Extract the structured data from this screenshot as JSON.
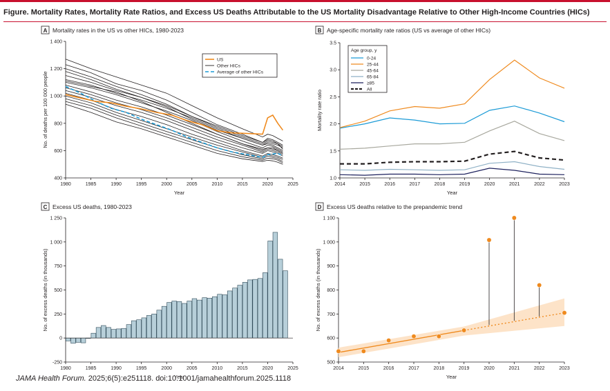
{
  "figure": {
    "title": "Figure. Mortality Rates, Mortality Rate Ratios, and Excess US Deaths Attributable to the US Mortality Disadvantage Relative to Other High-Income Countries (HICs)",
    "citation_journal": "JAMA Health Forum.",
    "citation_rest": " 2025;6(5):e251118. doi:10.1001/jamahealthforum.2025.1118"
  },
  "colors": {
    "us": "#ef8a1e",
    "other_hics": "#231f20",
    "average": "#1a9ad6",
    "bars": "#b7cfd9",
    "accent_red": "#c8102e",
    "band": "#fde0c2"
  },
  "chart_data": [
    {
      "panel_letter": "A",
      "title": "Mortality rates in the US vs other HICs, 1980-2023",
      "type": "line",
      "xlabel": "Year",
      "ylabel": "No. of deaths per 100 000 people",
      "xlim": [
        1980,
        2025
      ],
      "ylim": [
        400,
        1400
      ],
      "xticks": [
        1980,
        1985,
        1990,
        1995,
        2000,
        2005,
        2010,
        2015,
        2020,
        2025
      ],
      "yticks": [
        400,
        600,
        800,
        1000,
        1200,
        1400
      ],
      "legend": [
        "US",
        "Other HICs",
        "Average of other HICs"
      ],
      "legend_position": "top-right",
      "us": {
        "name": "US",
        "x": [
          1980,
          1983,
          1986,
          1989,
          1992,
          1995,
          1998,
          2001,
          2004,
          2007,
          2010,
          2013,
          2016,
          2019,
          2020,
          2021,
          2022,
          2023
        ],
        "y": [
          1010,
          985,
          960,
          950,
          925,
          905,
          880,
          860,
          820,
          790,
          745,
          730,
          725,
          720,
          840,
          860,
          800,
          750
        ]
      },
      "average": {
        "name": "Average of other HICs",
        "x": [
          1980,
          1983,
          1986,
          1989,
          1992,
          1995,
          1998,
          2001,
          2004,
          2007,
          2010,
          2013,
          2016,
          2019,
          2020,
          2021,
          2022,
          2023
        ],
        "y": [
          1070,
          1020,
          960,
          910,
          880,
          830,
          790,
          750,
          700,
          660,
          620,
          590,
          570,
          550,
          570,
          575,
          580,
          560
        ]
      },
      "others": [
        {
          "x": [
            1980,
            1985,
            1990,
            1995,
            2000,
            2005,
            2010,
            2015,
            2019,
            2020,
            2021,
            2022,
            2023
          ],
          "y": [
            1270,
            1200,
            1140,
            1080,
            1020,
            930,
            840,
            760,
            700,
            720,
            710,
            690,
            670
          ]
        },
        {
          "x": [
            1980,
            1985,
            1990,
            1995,
            2000,
            2005,
            2010,
            2015,
            2019,
            2020,
            2021,
            2022,
            2023
          ],
          "y": [
            1230,
            1170,
            1090,
            1040,
            970,
            880,
            790,
            720,
            660,
            690,
            680,
            660,
            640
          ]
        },
        {
          "x": [
            1980,
            1985,
            1990,
            1995,
            2000,
            2005,
            2010,
            2015,
            2019,
            2020,
            2021,
            2022,
            2023
          ],
          "y": [
            1200,
            1140,
            1070,
            1010,
            940,
            850,
            770,
            700,
            650,
            670,
            660,
            650,
            630
          ]
        },
        {
          "x": [
            1980,
            1985,
            1990,
            1995,
            2000,
            2005,
            2010,
            2015,
            2019,
            2020,
            2021,
            2022,
            2023
          ],
          "y": [
            1180,
            1120,
            1050,
            990,
            920,
            830,
            750,
            690,
            640,
            660,
            650,
            640,
            620
          ]
        },
        {
          "x": [
            1980,
            1985,
            1990,
            1995,
            2000,
            2005,
            2010,
            2015,
            2019,
            2020,
            2021,
            2022,
            2023
          ],
          "y": [
            1150,
            1100,
            1040,
            990,
            930,
            850,
            780,
            710,
            660,
            680,
            670,
            650,
            610
          ]
        },
        {
          "x": [
            1980,
            1985,
            1990,
            1995,
            2000,
            2005,
            2010,
            2015,
            2019,
            2020,
            2021,
            2022,
            2023
          ],
          "y": [
            1120,
            1080,
            1020,
            970,
            910,
            840,
            760,
            690,
            640,
            650,
            640,
            620,
            600
          ]
        },
        {
          "x": [
            1980,
            1985,
            1990,
            1995,
            2000,
            2005,
            2010,
            2015,
            2019,
            2020,
            2021,
            2022,
            2023
          ],
          "y": [
            1100,
            1060,
            1010,
            950,
            890,
            820,
            740,
            670,
            620,
            640,
            630,
            610,
            590
          ]
        },
        {
          "x": [
            1980,
            1985,
            1990,
            1995,
            2000,
            2005,
            2010,
            2015,
            2019,
            2020,
            2021,
            2022,
            2023
          ],
          "y": [
            1080,
            1030,
            970,
            920,
            860,
            790,
            720,
            650,
            600,
            620,
            610,
            600,
            580
          ]
        },
        {
          "x": [
            1980,
            1985,
            1990,
            1995,
            2000,
            2005,
            2010,
            2015,
            2019,
            2020,
            2021,
            2022,
            2023
          ],
          "y": [
            1060,
            1010,
            950,
            900,
            840,
            770,
            700,
            640,
            590,
            610,
            600,
            590,
            570
          ]
        },
        {
          "x": [
            1980,
            1985,
            1990,
            1995,
            2000,
            2005,
            2010,
            2015,
            2019,
            2020,
            2021,
            2022,
            2023
          ],
          "y": [
            1040,
            990,
            930,
            880,
            820,
            750,
            680,
            620,
            580,
            600,
            590,
            580,
            560
          ]
        },
        {
          "x": [
            1980,
            1985,
            1990,
            1995,
            2000,
            2005,
            2010,
            2015,
            2019,
            2020,
            2021,
            2022,
            2023
          ],
          "y": [
            1020,
            970,
            900,
            850,
            790,
            720,
            660,
            600,
            560,
            580,
            570,
            560,
            545
          ]
        },
        {
          "x": [
            1980,
            1985,
            1990,
            1995,
            2000,
            2005,
            2010,
            2015,
            2019,
            2020,
            2021,
            2022,
            2023
          ],
          "y": [
            1000,
            950,
            880,
            820,
            760,
            700,
            640,
            590,
            550,
            570,
            560,
            550,
            535
          ]
        },
        {
          "x": [
            1980,
            1985,
            1990,
            1995,
            2000,
            2005,
            2010,
            2015,
            2019,
            2020,
            2021,
            2022,
            2023
          ],
          "y": [
            980,
            930,
            860,
            800,
            740,
            680,
            620,
            570,
            540,
            560,
            550,
            540,
            520
          ]
        },
        {
          "x": [
            1980,
            1985,
            1990,
            1995,
            2000,
            2005,
            2010,
            2015,
            2019,
            2020,
            2021,
            2022,
            2023
          ],
          "y": [
            960,
            910,
            840,
            780,
            720,
            660,
            600,
            555,
            530,
            545,
            540,
            530,
            510
          ]
        },
        {
          "x": [
            1980,
            1985,
            1990,
            1995,
            2000,
            2005,
            2010,
            2015,
            2019,
            2020,
            2021,
            2022,
            2023
          ],
          "y": [
            940,
            880,
            810,
            760,
            700,
            640,
            580,
            540,
            520,
            530,
            525,
            515,
            500
          ]
        },
        {
          "x": [
            1980,
            1985,
            1990,
            1995,
            2000,
            2005,
            2010,
            2015,
            2019,
            2020,
            2021,
            2022,
            2023
          ],
          "y": [
            1110,
            1070,
            1030,
            960,
            880,
            800,
            720,
            650,
            610,
            620,
            620,
            600,
            580
          ]
        }
      ]
    },
    {
      "panel_letter": "B",
      "title": "Age-specific mortality rate ratios (US vs average of other HICs)",
      "type": "line",
      "xlabel": "Year",
      "ylabel": "Mortality rate ratio",
      "xlim": [
        2014,
        2023
      ],
      "ylim": [
        1.0,
        3.5
      ],
      "xticks": [
        2014,
        2015,
        2016,
        2017,
        2018,
        2019,
        2020,
        2021,
        2022,
        2023
      ],
      "yticks": [
        1.0,
        1.5,
        2.0,
        2.5,
        3.0,
        3.5
      ],
      "yticklabels": [
        "1.0",
        "1.5",
        "2.0",
        "2.5",
        "3.0",
        "3.5"
      ],
      "legend_title": "Age group, y",
      "legend_position": "top-left",
      "x": [
        2014,
        2015,
        2016,
        2017,
        2018,
        2019,
        2020,
        2021,
        2022,
        2023
      ],
      "series": [
        {
          "name": "0-24",
          "color": "#1a9ad6",
          "dash": "",
          "width": 1.2,
          "values": [
            1.92,
            2.0,
            2.11,
            2.07,
            2.0,
            2.01,
            2.25,
            2.33,
            2.2,
            2.04
          ]
        },
        {
          "name": "25-44",
          "color": "#ef8a1e",
          "dash": "",
          "width": 1.2,
          "values": [
            1.93,
            2.05,
            2.24,
            2.32,
            2.29,
            2.37,
            2.82,
            3.18,
            2.85,
            2.66
          ]
        },
        {
          "name": "45-64",
          "color": "#a8a89e",
          "dash": "",
          "width": 1.2,
          "values": [
            1.53,
            1.55,
            1.59,
            1.63,
            1.63,
            1.66,
            1.87,
            2.05,
            1.82,
            1.69
          ]
        },
        {
          "name": "65-84",
          "color": "#8fb1c6",
          "dash": "",
          "width": 1.2,
          "values": [
            1.15,
            1.14,
            1.16,
            1.15,
            1.14,
            1.15,
            1.27,
            1.3,
            1.21,
            1.16
          ]
        },
        {
          "name": "≥85",
          "color": "#1b1f5c",
          "dash": "",
          "width": 1.2,
          "values": [
            1.06,
            1.05,
            1.07,
            1.07,
            1.06,
            1.07,
            1.18,
            1.14,
            1.07,
            1.06
          ]
        },
        {
          "name": "All",
          "color": "#231f20",
          "dash": "6,4",
          "width": 2.2,
          "values": [
            1.26,
            1.26,
            1.29,
            1.3,
            1.3,
            1.31,
            1.44,
            1.49,
            1.37,
            1.33
          ]
        }
      ]
    },
    {
      "panel_letter": "C",
      "title": "Excess US deaths, 1980-2023",
      "type": "bar",
      "xlabel": "Year",
      "ylabel": "No. of excess deaths (in thousands)",
      "xlim": [
        1980,
        2025
      ],
      "ylim": [
        -250,
        1250
      ],
      "xticks": [
        1980,
        1985,
        1990,
        1995,
        2000,
        2005,
        2010,
        2015,
        2020,
        2025
      ],
      "yticks": [
        -250,
        0,
        250,
        500,
        750,
        1000,
        1250
      ],
      "categories": [
        1980,
        1981,
        1982,
        1983,
        1984,
        1985,
        1986,
        1987,
        1988,
        1989,
        1990,
        1991,
        1992,
        1993,
        1994,
        1995,
        1996,
        1997,
        1998,
        1999,
        2000,
        2001,
        2002,
        2003,
        2004,
        2005,
        2006,
        2007,
        2008,
        2009,
        2010,
        2011,
        2012,
        2013,
        2014,
        2015,
        2016,
        2017,
        2018,
        2019,
        2020,
        2021,
        2022,
        2023
      ],
      "values": [
        -30,
        -55,
        -45,
        -50,
        0,
        50,
        110,
        130,
        110,
        90,
        95,
        100,
        140,
        180,
        190,
        210,
        235,
        250,
        290,
        330,
        370,
        385,
        380,
        360,
        385,
        410,
        395,
        420,
        415,
        430,
        455,
        450,
        490,
        520,
        550,
        580,
        605,
        610,
        620,
        680,
        1010,
        1100,
        820,
        700
      ]
    },
    {
      "panel_letter": "D",
      "title": "Excess US deaths relative to the prepandemic trend",
      "type": "scatter",
      "xlabel": "Year",
      "ylabel": "No. of excess deaths (in thousands)",
      "xlim": [
        2014,
        2023
      ],
      "ylim": [
        500,
        1100
      ],
      "xticks": [
        2014,
        2015,
        2016,
        2017,
        2018,
        2019,
        2020,
        2021,
        2022,
        2023
      ],
      "yticks": [
        500,
        600,
        700,
        800,
        900,
        1000,
        1100
      ],
      "points": {
        "x": [
          2014,
          2015,
          2016,
          2017,
          2018,
          2019,
          2020,
          2021,
          2022,
          2023
        ],
        "y": [
          545,
          545,
          590,
          607,
          607,
          632,
          1008,
          1100,
          820,
          705
        ]
      },
      "trend": {
        "x": [
          2014,
          2023
        ],
        "y": [
          540,
          705
        ],
        "solid_until": 2019
      },
      "band": {
        "x": [
          2014,
          2019,
          2023
        ],
        "upper": [
          560,
          648,
          765
        ],
        "lower": [
          520,
          610,
          650
        ]
      },
      "trend_at_year": {
        "2020": 654,
        "2021": 672,
        "2022": 690
      }
    }
  ]
}
